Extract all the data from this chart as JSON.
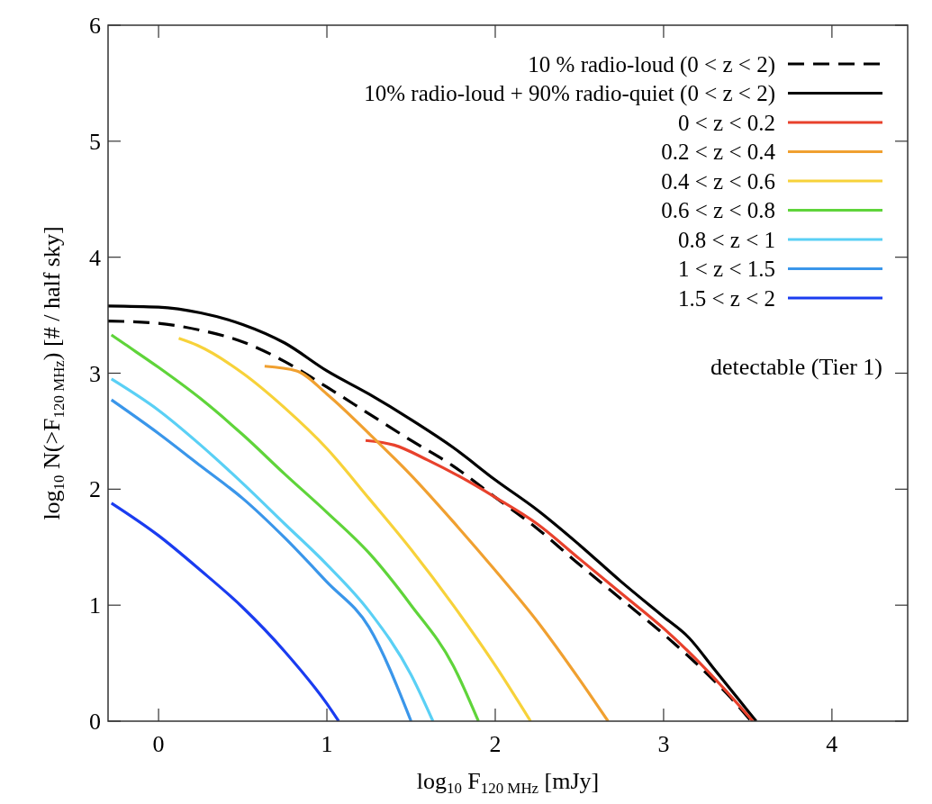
{
  "chart_data": {
    "type": "line",
    "xlabel": "log$_{10}$ F$_{120 MHz}$ [mJy]",
    "ylabel": "log$_{10}$ N(>F$_{120 MHz}$) [# / half sky]",
    "xlim": [
      -0.3,
      4.45
    ],
    "ylim": [
      0,
      6
    ],
    "xticks": [
      0,
      1,
      2,
      3,
      4
    ],
    "yticks": [
      0,
      1,
      2,
      3,
      4,
      5,
      6
    ],
    "grid": false,
    "legend": "top right",
    "annotations": [
      "detectable (Tier 1)"
    ],
    "series": [
      {
        "name": "10 % radio-loud (0 < z < 2)",
        "color": "#000000",
        "line_style": "dashed",
        "x": [
          -0.3,
          0,
          0.25,
          0.5,
          0.75,
          1,
          1.25,
          1.5,
          1.75,
          2,
          2.25,
          2.5,
          2.75,
          3,
          3.25,
          3.4,
          3.52
        ],
        "values": [
          3.45,
          3.43,
          3.37,
          3.27,
          3.1,
          2.88,
          2.65,
          2.42,
          2.2,
          1.93,
          1.66,
          1.35,
          1.05,
          0.75,
          0.42,
          0.2,
          0
        ]
      },
      {
        "name": "10% radio-loud + 90% radio-quiet (0 < z < 2)",
        "color": "#000000",
        "line_style": "solid",
        "x": [
          -0.3,
          0,
          0.25,
          0.5,
          0.75,
          1,
          1.25,
          1.5,
          1.75,
          2,
          2.25,
          2.5,
          2.75,
          3,
          3.15,
          3.3,
          3.45,
          3.55
        ],
        "values": [
          3.58,
          3.57,
          3.52,
          3.42,
          3.26,
          3.02,
          2.82,
          2.6,
          2.36,
          2.08,
          1.82,
          1.52,
          1.2,
          0.9,
          0.72,
          0.45,
          0.18,
          0
        ]
      },
      {
        "name": "0 < z < 0.2",
        "color": "#e8412c",
        "line_style": "solid",
        "x": [
          1.23,
          1.4,
          1.6,
          1.8,
          2,
          2.25,
          2.5,
          2.75,
          3,
          3.25,
          3.5,
          3.53
        ],
        "values": [
          2.42,
          2.38,
          2.25,
          2.1,
          1.93,
          1.7,
          1.4,
          1.1,
          0.8,
          0.45,
          0.05,
          0
        ]
      },
      {
        "name": "0.2 < z < 0.4",
        "color": "#f0a030",
        "line_style": "solid",
        "x": [
          0.63,
          0.82,
          1,
          1.25,
          1.5,
          1.75,
          2,
          2.25,
          2.5,
          2.67
        ],
        "values": [
          3.06,
          3.02,
          2.82,
          2.48,
          2.12,
          1.72,
          1.3,
          0.86,
          0.36,
          0
        ]
      },
      {
        "name": "0.4 < z < 0.6",
        "color": "#f7d23a",
        "line_style": "solid",
        "x": [
          0.12,
          0.23,
          0.5,
          0.75,
          1,
          1.25,
          1.5,
          1.75,
          2,
          2.21
        ],
        "values": [
          3.3,
          3.24,
          3.0,
          2.7,
          2.35,
          1.92,
          1.48,
          1.0,
          0.48,
          0
        ]
      },
      {
        "name": "0.6 < z < 0.8",
        "color": "#5fd43a",
        "line_style": "solid",
        "x": [
          -0.28,
          -0.2,
          0,
          0.25,
          0.5,
          0.75,
          1,
          1.25,
          1.5,
          1.75,
          1.9
        ],
        "values": [
          3.33,
          3.25,
          3.05,
          2.78,
          2.47,
          2.13,
          1.8,
          1.45,
          1.0,
          0.48,
          0
        ]
      },
      {
        "name": "0.8 < z < 1",
        "color": "#5ad0f5",
        "line_style": "solid",
        "x": [
          -0.28,
          0,
          0.25,
          0.5,
          0.75,
          1,
          1.25,
          1.5,
          1.63
        ],
        "values": [
          2.95,
          2.68,
          2.38,
          2.05,
          1.7,
          1.35,
          0.95,
          0.4,
          0
        ]
      },
      {
        "name": "1 < z < 1.5",
        "color": "#3a96ea",
        "line_style": "solid",
        "x": [
          -0.28,
          0,
          0.25,
          0.5,
          0.75,
          1,
          1.25,
          1.5
        ],
        "values": [
          2.77,
          2.48,
          2.2,
          1.92,
          1.58,
          1.2,
          0.81,
          0
        ]
      },
      {
        "name": "1.5 < z < 2",
        "color": "#1a3cf0",
        "line_style": "solid",
        "x": [
          -0.28,
          0,
          0.25,
          0.5,
          0.75,
          1,
          1.07
        ],
        "values": [
          1.88,
          1.6,
          1.3,
          0.98,
          0.6,
          0.15,
          0
        ]
      }
    ]
  }
}
